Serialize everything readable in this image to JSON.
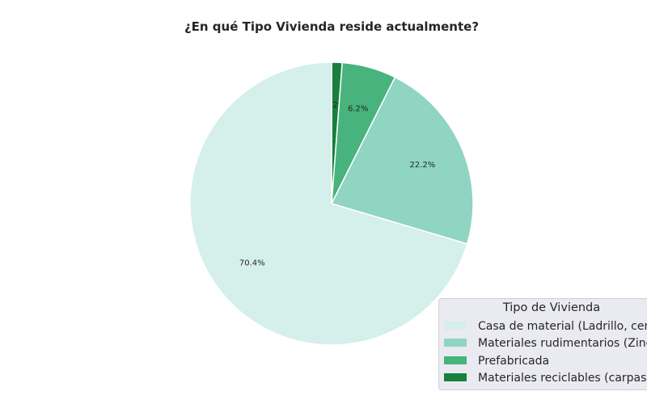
{
  "chart_data": {
    "type": "pie",
    "title": "¿En qué Tipo Vivienda reside actualmente?",
    "slices": [
      {
        "label": "Casa de material (Ladrillo, cemento, etc.)",
        "value": 70.4,
        "pct_label": "70.4%",
        "color": "#d5efea"
      },
      {
        "label": "Materiales rudimentarios (Zinc, madera, etc.)",
        "value": 22.2,
        "pct_label": "22.2%",
        "color": "#8fd5c2"
      },
      {
        "label": "Prefabricada",
        "value": 6.2,
        "pct_label": "6.2%",
        "color": "#48b37c"
      },
      {
        "label": "Materiales reciclables (carpas, cartón, etc.)",
        "value": 1.2,
        "pct_label": "1.2%",
        "color": "#17803d"
      }
    ],
    "start_angle": 90,
    "direction": "clockwise-from-top-reversed",
    "legend": {
      "title": "Tipo de Vivienda",
      "location": "bottom-right"
    }
  }
}
